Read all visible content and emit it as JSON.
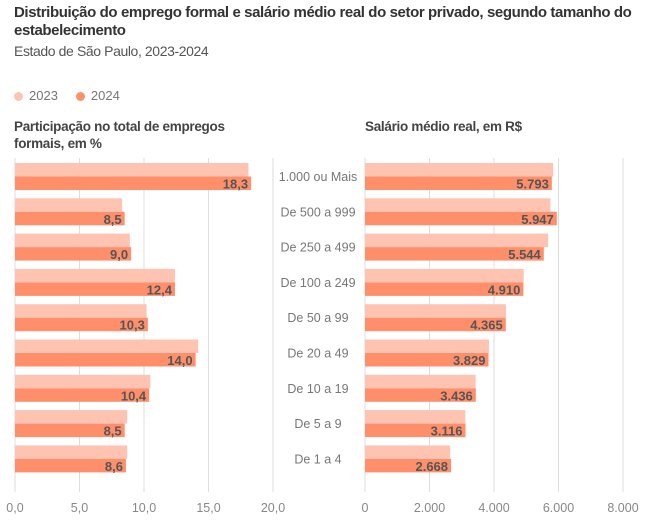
{
  "title": "Distribuição do emprego formal e salário médio real do setor privado, segundo tamanho do estabelecimento",
  "subtitle": "Estado de São Paulo, 2023-2024",
  "colors": {
    "2023": "#FFC3B2",
    "2024": "#FF8F6B",
    "label": "#555555",
    "grid": "#DDDDDD"
  },
  "legend": [
    "2023",
    "2024"
  ],
  "chart_data": [
    {
      "type": "bar",
      "orientation": "horizontal",
      "title": "Participação no total de empregos formais, em %",
      "categories": [
        "1.000 ou Mais",
        "De 500 a 999",
        "De 250 a 499",
        "De 100 a 249",
        "De 50 a 99",
        "De 20 a 49",
        "De 10 a 19",
        "De 5 a 9",
        "De 1 a 4"
      ],
      "series": [
        {
          "name": "2023",
          "values": [
            18.1,
            8.3,
            8.9,
            12.4,
            10.2,
            14.2,
            10.5,
            8.7,
            8.7
          ]
        },
        {
          "name": "2024",
          "values": [
            18.3,
            8.5,
            9.0,
            12.4,
            10.3,
            14.0,
            10.4,
            8.5,
            8.6
          ]
        }
      ],
      "data_labels": [
        "18,3",
        "8,5",
        "9,0",
        "12,4",
        "10,3",
        "14,0",
        "10,4",
        "8,5",
        "8,6"
      ],
      "xlim": [
        0,
        20
      ],
      "ticks": [
        0,
        5,
        10,
        15,
        20
      ],
      "tick_labels": [
        "0,0",
        "5,0",
        "10,0",
        "15,0",
        "20,0"
      ],
      "grid": true
    },
    {
      "type": "bar",
      "orientation": "horizontal",
      "title": "Salário médio real, em R$",
      "categories": [
        "1.000 ou Mais",
        "De 500 a 999",
        "De 250 a 499",
        "De 100 a 249",
        "De 50 a 99",
        "De 20 a 49",
        "De 10 a 19",
        "De 5 a 9",
        "De 1 a 4"
      ],
      "series": [
        {
          "name": "2023",
          "values": [
            5834,
            5751,
            5679,
            4922,
            4373,
            3845,
            3430,
            3109,
            2642
          ]
        },
        {
          "name": "2024",
          "values": [
            5793,
            5947,
            5544,
            4910,
            4365,
            3829,
            3436,
            3116,
            2668
          ]
        }
      ],
      "data_labels": [
        "5.793",
        "5.947",
        "5.544",
        "4.910",
        "4.365",
        "3.829",
        "3.436",
        "3.116",
        "2.668"
      ],
      "xlim": [
        0,
        8000
      ],
      "ticks": [
        0,
        2000,
        4000,
        6000,
        8000
      ],
      "tick_labels": [
        "0",
        "2.000",
        "4.000",
        "6.000",
        "8.000"
      ],
      "grid": true
    }
  ]
}
